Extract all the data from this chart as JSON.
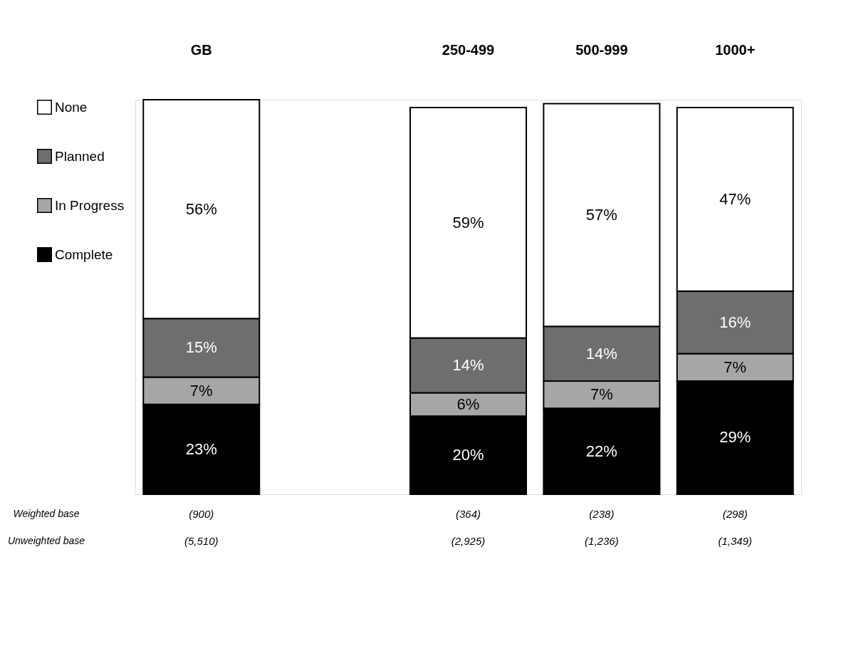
{
  "chart_data": {
    "type": "bar",
    "stacked": true,
    "legend": "left",
    "tick_labels": "x",
    "categories": [
      "GB",
      null,
      "250-499",
      "500-999",
      "1000+"
    ],
    "series": [
      {
        "name": "Complete",
        "color": "#000000",
        "values": [
          23,
          null,
          20,
          22,
          29
        ],
        "value_labels": [
          "23%",
          null,
          "20%",
          "22%",
          "29%"
        ]
      },
      {
        "name": "In Progress",
        "color": "#a6a6a6",
        "values": [
          7,
          null,
          6,
          7,
          7
        ],
        "value_labels": [
          "7%",
          null,
          "6%",
          "7%",
          "7%"
        ]
      },
      {
        "name": "Planned",
        "color": "#6e6e6e",
        "values": [
          15,
          null,
          14,
          14,
          16
        ],
        "value_labels": [
          "15%",
          null,
          "14%",
          "14%",
          "16%"
        ]
      },
      {
        "name": "None",
        "color": "#ffffff",
        "values": [
          56,
          null,
          59,
          57,
          47
        ],
        "value_labels": [
          "56%",
          null,
          "59%",
          "57%",
          "47%"
        ]
      }
    ],
    "annotations": [
      "Weighted base",
      "(900)",
      "(364)",
      "(238)",
      "(298)",
      "Unweighted base",
      "(5,510)",
      "(2,925)",
      "(1,236)",
      "(1,349)"
    ]
  }
}
